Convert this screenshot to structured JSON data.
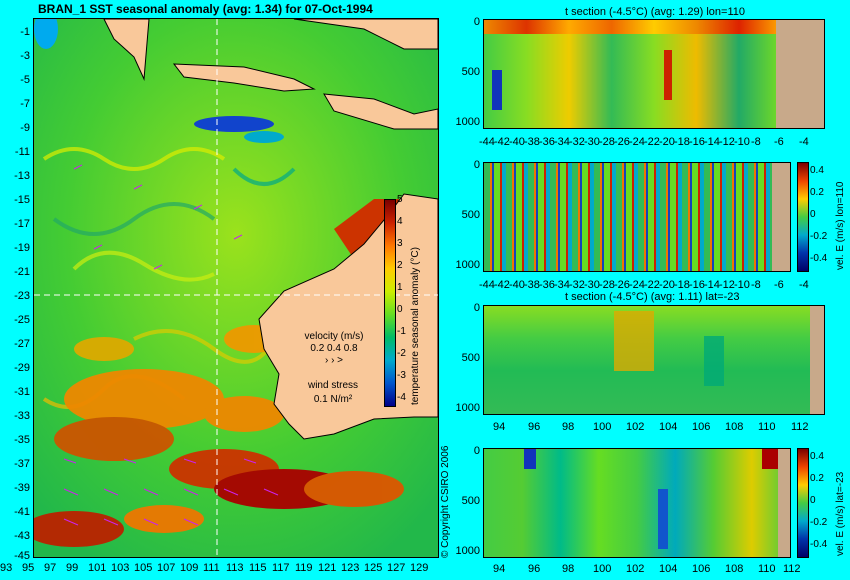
{
  "map": {
    "title": "BRAN_1  SST seasonal anomaly  (avg: 1.34) for 07-Oct-1994",
    "y_ticks": [
      "-1",
      "-3",
      "-5",
      "-7",
      "-9",
      "-11",
      "-13",
      "-15",
      "-17",
      "-19",
      "-21",
      "-23",
      "-25",
      "-27",
      "-29",
      "-31",
      "-33",
      "-35",
      "-37",
      "-39",
      "-41",
      "-43",
      "-45"
    ],
    "x_ticks": [
      "93",
      "95",
      "97",
      "99",
      "101",
      "103",
      "105",
      "107",
      "109",
      "111",
      "113",
      "115",
      "117",
      "119",
      "121",
      "123",
      "125",
      "127",
      "129"
    ],
    "colorbar": {
      "label": "temperature seasonal anomaly (°C)",
      "ticks": [
        "5",
        "4",
        "3",
        "2",
        "1",
        "0",
        "-1",
        "-2",
        "-3",
        "-4"
      ]
    },
    "legend": {
      "velocity_title": "velocity (m/s)",
      "velocity_values": "0.2 0.4 0.8",
      "wind_title": "wind stress",
      "wind_value": "0.1 N/m²"
    },
    "copyright": "© Copyright CSIRO 2006"
  },
  "panels": [
    {
      "title": "t section (-4.5°C) (avg: 1.29) lon=110",
      "y_ticks": [
        "0",
        "500",
        "1000"
      ],
      "x_ticks": [
        "-44",
        "-42",
        "-40",
        "-38",
        "-36",
        "-34",
        "-32",
        "-30",
        "-28",
        "-26",
        "-24",
        "-22",
        "-20",
        "-18",
        "-16",
        "-14",
        "-12",
        "-10",
        "-8",
        "-6",
        "-4"
      ]
    },
    {
      "title": "",
      "y_ticks": [
        "0",
        "500",
        "1000"
      ],
      "x_ticks": [
        "-44",
        "-42",
        "-40",
        "-38",
        "-36",
        "-34",
        "-32",
        "-30",
        "-28",
        "-26",
        "-24",
        "-22",
        "-20",
        "-18",
        "-16",
        "-14",
        "-12",
        "-10",
        "-8",
        "-6",
        "-4"
      ],
      "cb_ticks": [
        "0.4",
        "0.2",
        "0",
        "-0.2",
        "-0.4"
      ],
      "cb_label": "vel. E (m/s) lon=110"
    },
    {
      "title": "t section (-4.5°C) (avg: 1.11) lat=-23",
      "y_ticks": [
        "0",
        "500",
        "1000"
      ],
      "x_ticks": [
        "94",
        "96",
        "98",
        "100",
        "102",
        "104",
        "106",
        "108",
        "110",
        "112"
      ]
    },
    {
      "title": "",
      "y_ticks": [
        "0",
        "500",
        "1000"
      ],
      "x_ticks": [
        "94",
        "96",
        "98",
        "100",
        "102",
        "104",
        "106",
        "108",
        "110",
        "112"
      ],
      "cb_ticks": [
        "0.4",
        "0.2",
        "0",
        "-0.2",
        "-0.4"
      ],
      "cb_label": "vel. E (m/s) lat=-23"
    }
  ]
}
